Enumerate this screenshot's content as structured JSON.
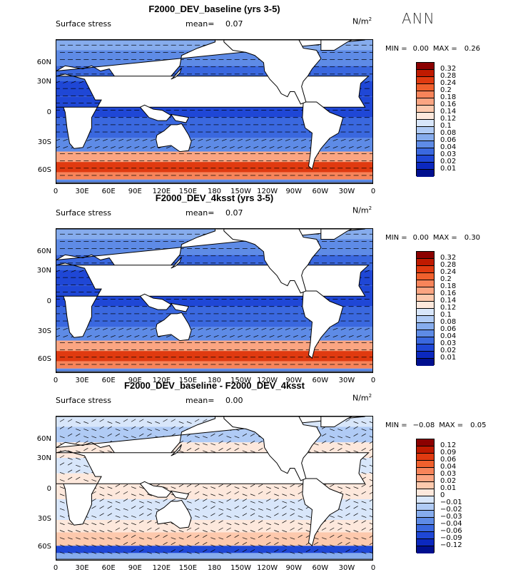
{
  "season": "ANN",
  "panels": [
    {
      "title": "F2000_DEV_baseline (yrs 3-5)",
      "variable": "Surface stress",
      "mean_label": "mean=",
      "mean_value": "0.07",
      "units": "N/m",
      "units_sup": "2",
      "min_label": "MIN =",
      "min_value": "0.00",
      "max_label": "MAX =",
      "max_value": "0.26",
      "levels": [
        "0.32",
        "0.28",
        "0.24",
        "0.2",
        "0.18",
        "0.16",
        "0.14",
        "0.12",
        "0.1",
        "0.08",
        "0.06",
        "0.04",
        "0.03",
        "0.02",
        "0.01"
      ],
      "colors": [
        "#8b0000",
        "#bf1a00",
        "#e03a10",
        "#f0602d",
        "#f7845a",
        "#fba582",
        "#fdc9ad",
        "#fde8dc",
        "#d8e6fa",
        "#b0cbf5",
        "#86aced",
        "#5e8be6",
        "#3a68df",
        "#1f47d6",
        "#0b28bf",
        "#000f8f"
      ]
    },
    {
      "title": "F2000_DEV_4ksst (yrs 3-5)",
      "variable": "Surface stress",
      "mean_label": "mean=",
      "mean_value": "0.07",
      "units": "N/m",
      "units_sup": "2",
      "min_label": "MIN =",
      "min_value": "0.00",
      "max_label": "MAX =",
      "max_value": "0.30",
      "levels": [
        "0.32",
        "0.28",
        "0.24",
        "0.2",
        "0.18",
        "0.16",
        "0.14",
        "0.12",
        "0.1",
        "0.08",
        "0.06",
        "0.04",
        "0.03",
        "0.02",
        "0.01"
      ],
      "colors": [
        "#8b0000",
        "#bf1a00",
        "#e03a10",
        "#f0602d",
        "#f7845a",
        "#fba582",
        "#fdc9ad",
        "#fde8dc",
        "#d8e6fa",
        "#b0cbf5",
        "#86aced",
        "#5e8be6",
        "#3a68df",
        "#1f47d6",
        "#0b28bf",
        "#000f8f"
      ]
    },
    {
      "title": "F2000_DEV_baseline - F2000_DEV_4ksst",
      "variable": "Surface stress",
      "mean_label": "mean=",
      "mean_value": "0.00",
      "units": "N/m",
      "units_sup": "2",
      "min_label": "MIN =",
      "min_value": "−0.08",
      "max_label": "MAX =",
      "max_value": "0.05",
      "levels": [
        "0.12",
        "0.09",
        "0.06",
        "0.04",
        "0.03",
        "0.02",
        "0.01",
        "0",
        "−0.01",
        "−0.02",
        "−0.03",
        "−0.04",
        "−0.06",
        "−0.09",
        "−0.12"
      ],
      "colors": [
        "#8b0000",
        "#bf1a00",
        "#e03a10",
        "#f0602d",
        "#f7845a",
        "#fba582",
        "#fdc9ad",
        "#fde8dc",
        "#d8e6fa",
        "#b0cbf5",
        "#86aced",
        "#5e8be6",
        "#3a68df",
        "#1f47d6",
        "#0b28bf",
        "#000f8f"
      ]
    }
  ],
  "lat_ticks": [
    "60N",
    "30N",
    "0",
    "30S",
    "60S"
  ],
  "lon_ticks": [
    "0",
    "30E",
    "60E",
    "90E",
    "120E",
    "150E",
    "180",
    "150W",
    "120W",
    "90W",
    "60W",
    "30W",
    "0"
  ]
}
